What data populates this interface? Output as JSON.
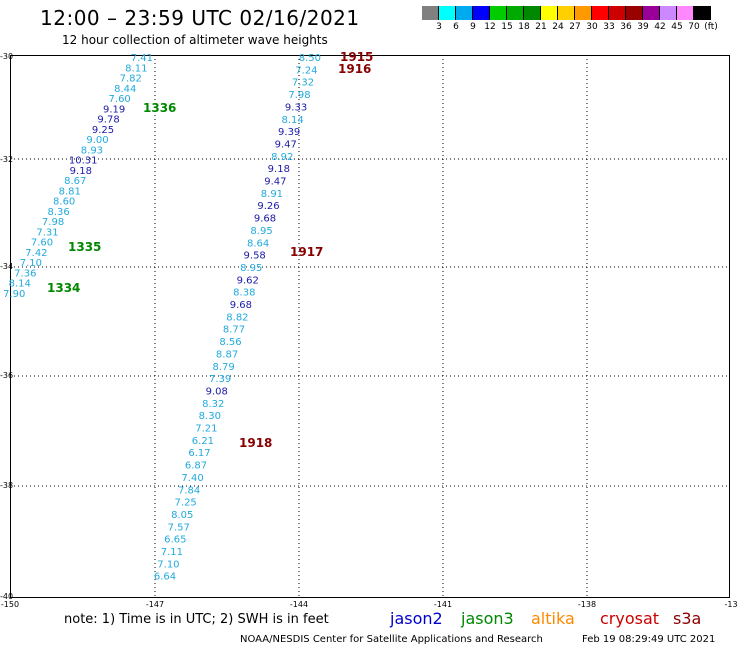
{
  "header": {
    "title": "12:00 – 23:59 UTC 02/16/2021",
    "subtitle": "12 hour collection of altimeter wave heights"
  },
  "legend": {
    "swatches": [
      {
        "color": "#808080",
        "label": "3"
      },
      {
        "color": "#00ffff",
        "label": "6"
      },
      {
        "color": "#00aaee",
        "label": "9"
      },
      {
        "color": "#0000ff",
        "label": "12"
      },
      {
        "color": "#00cc00",
        "label": "15"
      },
      {
        "color": "#00aa00",
        "label": "18"
      },
      {
        "color": "#008800",
        "label": "21"
      },
      {
        "color": "#ffff00",
        "label": "24"
      },
      {
        "color": "#ffd000",
        "label": "27"
      },
      {
        "color": "#ff9900",
        "label": "30"
      },
      {
        "color": "#ff0000",
        "label": "33"
      },
      {
        "color": "#cc0000",
        "label": "36"
      },
      {
        "color": "#990000",
        "label": "39"
      },
      {
        "color": "#990099",
        "label": "42"
      },
      {
        "color": "#cc88ff",
        "label": "45"
      },
      {
        "color": "#ff88ff",
        "label": "70"
      },
      {
        "color": "#000000",
        "label": "(ft)"
      }
    ]
  },
  "map": {
    "lat_ticks": [
      "-30",
      "-32",
      "-34",
      "-36",
      "-38",
      "-40"
    ],
    "lon_ticks": [
      "-150",
      "-147",
      "-144",
      "-141",
      "-138",
      "-13"
    ],
    "colors": {
      "light": "#22aadd",
      "dark": "#1a1aaa",
      "jason3": "#008800",
      "cryosat": "#880000"
    },
    "track_a_values": [
      "7.41",
      "8.11",
      "7.82",
      "8.44",
      "7.60",
      "9.19",
      "9.78",
      "9.25",
      "9.00",
      "8.93",
      "10.31",
      "9.18",
      "8.67",
      "8.81",
      "8.60",
      "8.36",
      "7.98",
      "7.31",
      "7.60",
      "7.42",
      "7.10",
      "7.36",
      "8.14",
      "7.90"
    ],
    "track_a_dark": [
      false,
      false,
      false,
      false,
      false,
      true,
      true,
      true,
      false,
      false,
      true,
      true,
      false,
      false,
      false,
      false,
      false,
      false,
      false,
      false,
      false,
      false,
      false,
      false
    ],
    "track_b_values": [
      "8.50",
      "7.24",
      "7.32",
      "7.98",
      "9.33",
      "8.14",
      "9.39",
      "9.47",
      "8.92",
      "9.18",
      "9.47",
      "8.91",
      "9.26",
      "9.68",
      "8.95",
      "8.64",
      "9.58",
      "8.95",
      "9.62",
      "8.38",
      "9.68",
      "8.82",
      "8.77",
      "8.56",
      "8.87",
      "8.79",
      "7.39",
      "9.08",
      "8.32",
      "8.30",
      "7.21",
      "6.21",
      "6.17",
      "6.87",
      "7.40",
      "7.84",
      "7.25",
      "8.05",
      "7.57",
      "6.65",
      "7.11",
      "7.10",
      "6.64"
    ],
    "track_b_dark": [
      false,
      false,
      false,
      false,
      true,
      false,
      true,
      true,
      false,
      true,
      true,
      false,
      true,
      true,
      false,
      false,
      true,
      false,
      true,
      false,
      true,
      false,
      false,
      false,
      false,
      false,
      false,
      true,
      false,
      false,
      false,
      false,
      false,
      false,
      false,
      false,
      false,
      false,
      false,
      false,
      false,
      false,
      false
    ],
    "time_labels": [
      {
        "text": "1915",
        "sat": "cryosat"
      },
      {
        "text": "1916",
        "sat": "cryosat"
      },
      {
        "text": "1336",
        "sat": "jason3"
      },
      {
        "text": "1917",
        "sat": "cryosat"
      },
      {
        "text": "1335",
        "sat": "jason3"
      },
      {
        "text": "1334",
        "sat": "jason3"
      },
      {
        "text": "1918",
        "sat": "cryosat"
      }
    ]
  },
  "footer": {
    "note": "note:  1) Time is in UTC; 2) SWH is in feet",
    "satellites": [
      {
        "name": "jason2",
        "color": "#0000cc"
      },
      {
        "name": "jason3",
        "color": "#008800"
      },
      {
        "name": "altika",
        "color": "#ff8800"
      },
      {
        "name": "cryosat",
        "color": "#cc0000"
      },
      {
        "name": "s3a",
        "color": "#880000"
      }
    ],
    "credit": "NOAA/NESDIS Center for Satellite Applications and Research",
    "timestamp": "Feb 19 08:29:49 UTC 2021"
  }
}
